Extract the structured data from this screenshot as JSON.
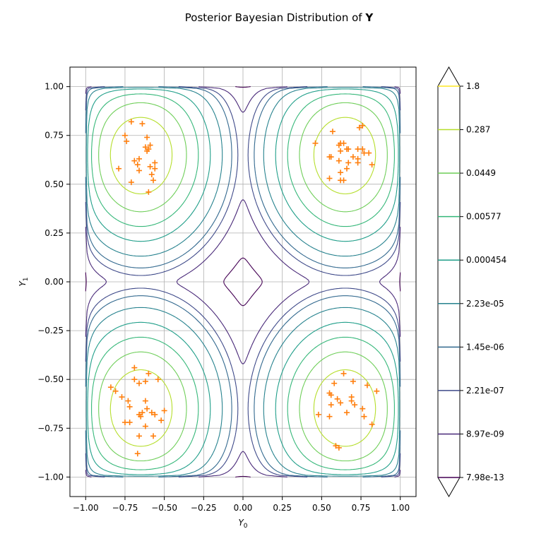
{
  "chart_data": {
    "type": "contour",
    "title": "Posterior Bayesian Distribution of ",
    "title_symbol": "Y",
    "xlabel": "Y",
    "xlabel_sub": "0",
    "ylabel": "Y",
    "ylabel_sub": "1",
    "xlim": [
      -1.1,
      1.1
    ],
    "ylim": [
      -1.1,
      1.1
    ],
    "x_ticks": [
      -1.0,
      -0.75,
      -0.5,
      -0.25,
      0.0,
      0.25,
      0.5,
      0.75,
      1.0
    ],
    "x_tick_labels": [
      "−1.00",
      "−0.75",
      "−0.50",
      "−0.25",
      "0.00",
      "0.25",
      "0.50",
      "0.75",
      "1.00"
    ],
    "y_ticks": [
      -1.0,
      -0.75,
      -0.5,
      -0.25,
      0.0,
      0.25,
      0.5,
      0.75,
      1.0
    ],
    "y_tick_labels": [
      "−1.00",
      "−0.75",
      "−0.50",
      "−0.25",
      "0.00",
      "0.25",
      "0.50",
      "0.75",
      "1.00"
    ],
    "grid": true,
    "colorbar": {
      "levels": [
        "1.8",
        "0.287",
        "0.0449",
        "0.00577",
        "0.000454",
        "2.23e-05",
        "1.45e-06",
        "2.21e-07",
        "8.97e-09",
        "7.98e-13"
      ],
      "colors": [
        "#fde725",
        "#b5de2b",
        "#6ece58",
        "#35b779",
        "#1f9e89",
        "#26828e",
        "#31688e",
        "#3e4989",
        "#482878",
        "#440154"
      ],
      "extend": "both"
    },
    "contour_colormap": "viridis",
    "modes": [
      [
        -0.65,
        0.65
      ],
      [
        0.65,
        0.65
      ],
      [
        -0.65,
        -0.65
      ],
      [
        0.65,
        -0.65
      ]
    ],
    "samples": {
      "marker": "+",
      "color": "#ff7f0e",
      "points": [
        [
          -0.71,
          0.82
        ],
        [
          -0.64,
          0.81
        ],
        [
          -0.75,
          0.75
        ],
        [
          -0.61,
          0.74
        ],
        [
          -0.74,
          0.72
        ],
        [
          -0.59,
          0.7
        ],
        [
          -0.62,
          0.69
        ],
        [
          -0.61,
          0.67
        ],
        [
          -0.6,
          0.68
        ],
        [
          -0.69,
          0.62
        ],
        [
          -0.66,
          0.63
        ],
        [
          -0.67,
          0.6
        ],
        [
          -0.56,
          0.61
        ],
        [
          -0.59,
          0.59
        ],
        [
          -0.66,
          0.57
        ],
        [
          -0.56,
          0.58
        ],
        [
          -0.79,
          0.58
        ],
        [
          -0.58,
          0.55
        ],
        [
          -0.57,
          0.52
        ],
        [
          -0.71,
          0.51
        ],
        [
          -0.6,
          0.46
        ],
        [
          0.57,
          0.77
        ],
        [
          0.76,
          0.8
        ],
        [
          0.74,
          0.79
        ],
        [
          0.46,
          0.71
        ],
        [
          0.62,
          0.71
        ],
        [
          0.61,
          0.7
        ],
        [
          0.64,
          0.71
        ],
        [
          0.67,
          0.68
        ],
        [
          0.66,
          0.68
        ],
        [
          0.73,
          0.68
        ],
        [
          0.76,
          0.68
        ],
        [
          0.62,
          0.67
        ],
        [
          0.77,
          0.66
        ],
        [
          0.8,
          0.66
        ],
        [
          0.7,
          0.64
        ],
        [
          0.55,
          0.64
        ],
        [
          0.56,
          0.64
        ],
        [
          0.73,
          0.63
        ],
        [
          0.73,
          0.61
        ],
        [
          0.67,
          0.61
        ],
        [
          0.61,
          0.62
        ],
        [
          0.82,
          0.6
        ],
        [
          0.66,
          0.58
        ],
        [
          0.62,
          0.56
        ],
        [
          0.55,
          0.53
        ],
        [
          0.62,
          0.52
        ],
        [
          0.64,
          0.52
        ],
        [
          -0.69,
          -0.44
        ],
        [
          -0.6,
          -0.47
        ],
        [
          -0.84,
          -0.54
        ],
        [
          -0.81,
          -0.56
        ],
        [
          -0.62,
          -0.51
        ],
        [
          -0.54,
          -0.5
        ],
        [
          -0.69,
          -0.5
        ],
        [
          -0.66,
          -0.52
        ],
        [
          -0.77,
          -0.59
        ],
        [
          -0.73,
          -0.61
        ],
        [
          -0.62,
          -0.61
        ],
        [
          -0.72,
          -0.64
        ],
        [
          -0.61,
          -0.65
        ],
        [
          -0.64,
          -0.67
        ],
        [
          -0.58,
          -0.67
        ],
        [
          -0.56,
          -0.68
        ],
        [
          -0.66,
          -0.68
        ],
        [
          -0.5,
          -0.66
        ],
        [
          -0.65,
          -0.69
        ],
        [
          -0.75,
          -0.72
        ],
        [
          -0.72,
          -0.72
        ],
        [
          -0.52,
          -0.71
        ],
        [
          -0.62,
          -0.74
        ],
        [
          -0.66,
          -0.79
        ],
        [
          -0.57,
          -0.79
        ],
        [
          -0.67,
          -0.88
        ],
        [
          0.64,
          -0.47
        ],
        [
          0.7,
          -0.51
        ],
        [
          0.58,
          -0.52
        ],
        [
          0.79,
          -0.53
        ],
        [
          0.85,
          -0.56
        ],
        [
          0.55,
          -0.57
        ],
        [
          0.56,
          -0.58
        ],
        [
          0.6,
          -0.6
        ],
        [
          0.62,
          -0.62
        ],
        [
          0.69,
          -0.59
        ],
        [
          0.69,
          -0.61
        ],
        [
          0.56,
          -0.63
        ],
        [
          0.71,
          -0.63
        ],
        [
          0.76,
          -0.65
        ],
        [
          0.66,
          -0.67
        ],
        [
          0.48,
          -0.68
        ],
        [
          0.77,
          -0.69
        ],
        [
          0.55,
          -0.69
        ],
        [
          0.82,
          -0.73
        ],
        [
          0.59,
          -0.84
        ],
        [
          0.61,
          -0.85
        ]
      ]
    }
  }
}
